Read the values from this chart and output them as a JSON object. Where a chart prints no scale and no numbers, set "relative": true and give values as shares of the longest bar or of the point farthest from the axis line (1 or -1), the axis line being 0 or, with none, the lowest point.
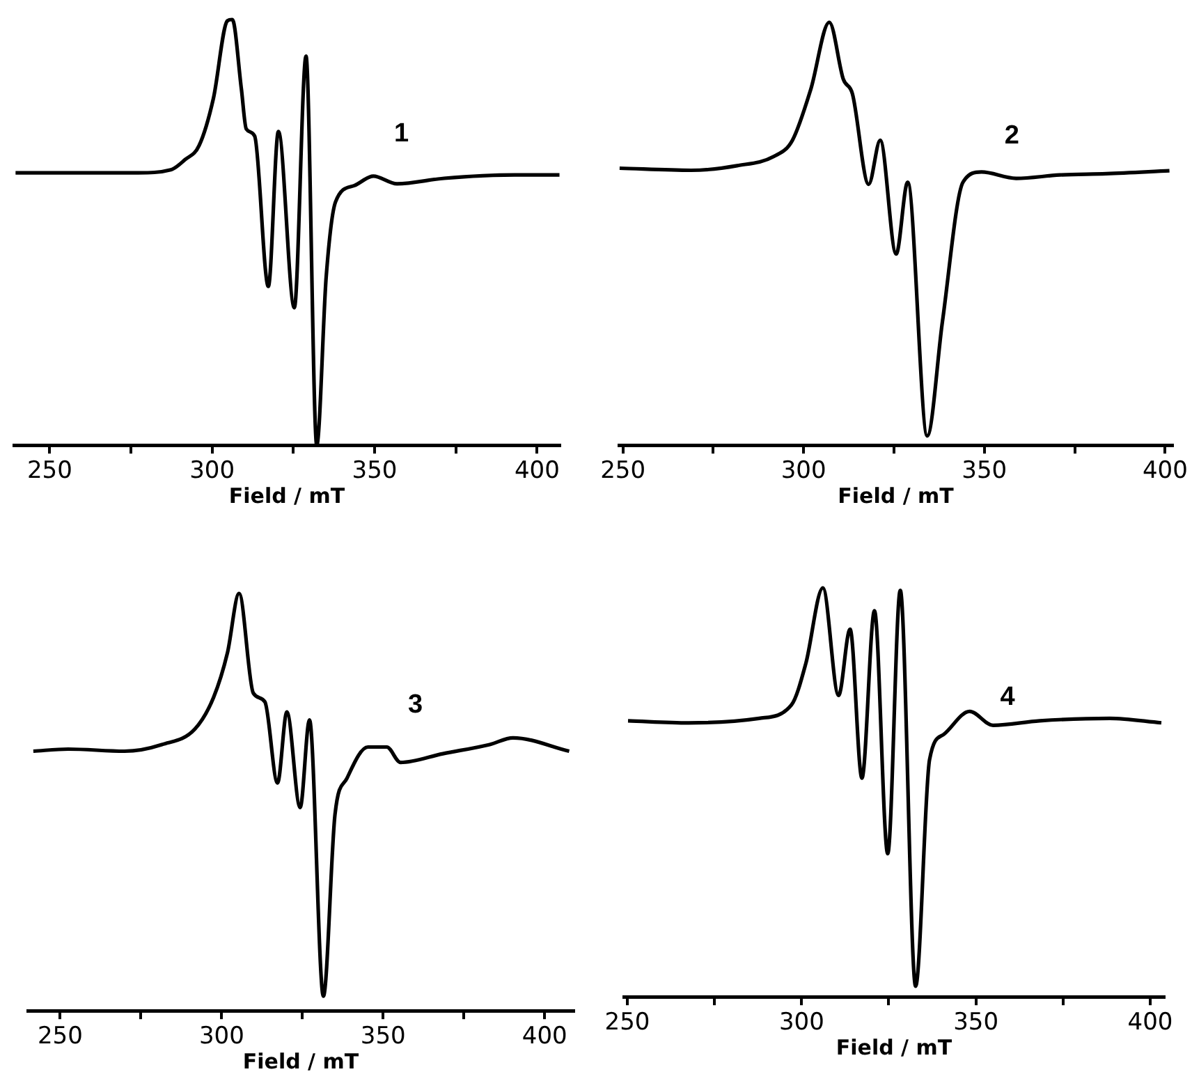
{
  "chart_data": [
    {
      "type": "line",
      "relative": true,
      "xlabel": "Field / mT",
      "xlim": [
        239,
        407
      ],
      "xticks": [
        250,
        {
          "value": 275,
          "label": null
        },
        300,
        {
          "value": 325,
          "label": null
        },
        350,
        {
          "value": 375,
          "label": null
        },
        400
      ],
      "tick_labels": "x",
      "annotations": [
        "1"
      ],
      "x": [
        239.5,
        262.7,
        277.2,
        287.3,
        291.7,
        296,
        300.4,
        304.7,
        306.2,
        309,
        310.5,
        313.1,
        317.3,
        320.4,
        325.3,
        328.9,
        332.2,
        335.1,
        338,
        343.8,
        349.6,
        356.9,
        371.4,
        393.1,
        406.9
      ],
      "series": [
        {
          "color": "#000000",
          "values": [
            0.64,
            0.64,
            0.64,
            0.647,
            0.671,
            0.704,
            0.815,
            0.997,
            1,
            0.837,
            0.743,
            0.726,
            0.373,
            0.737,
            0.323,
            0.914,
            0,
            0.395,
            0.572,
            0.61,
            0.632,
            0.614,
            0.627,
            0.635,
            0.635
          ]
        }
      ]
    },
    {
      "type": "line",
      "relative": true,
      "xlabel": "Field / mT",
      "xlim": [
        249,
        402
      ],
      "xticks": [
        250,
        {
          "value": 275,
          "label": null
        },
        300,
        {
          "value": 325,
          "label": null
        },
        350,
        {
          "value": 375,
          "label": null
        },
        400
      ],
      "tick_labels": "x",
      "annotations": [
        "2"
      ],
      "x": [
        249.1,
        268.9,
        281.6,
        291.8,
        296.9,
        302,
        307.1,
        311,
        313.5,
        318,
        321.2,
        325.6,
        328.8,
        334.2,
        338.4,
        344.1,
        349.2,
        358.8,
        370.9,
        383.7,
        401.2
      ],
      "series": [
        {
          "color": "#000000",
          "values": [
            0.655,
            0.65,
            0.661,
            0.683,
            0.721,
            0.842,
            1,
            0.865,
            0.831,
            0.617,
            0.721,
            0.452,
            0.622,
            0.022,
            0.292,
            0.622,
            0.646,
            0.631,
            0.639,
            0.642,
            0.649
          ]
        }
      ]
    },
    {
      "type": "line",
      "relative": true,
      "xlabel": "Field / mT",
      "xlim": [
        240,
        409
      ],
      "xticks": [
        250,
        {
          "value": 275,
          "label": null
        },
        300,
        {
          "value": 325,
          "label": null
        },
        350,
        {
          "value": 375,
          "label": null
        },
        400
      ],
      "tick_labels": "x",
      "annotations": [
        "3"
      ],
      "x": [
        241.7,
        252.5,
        269.9,
        281.5,
        291.7,
        297.5,
        301.8,
        305.4,
        309.8,
        313.4,
        317.3,
        320.2,
        324.3,
        327.2,
        331.5,
        335.1,
        338.8,
        345.3,
        351.1,
        355.4,
        368.5,
        383,
        390.2,
        407.6
      ],
      "series": [
        {
          "color": "#000000",
          "values": [
            0.622,
            0.627,
            0.622,
            0.638,
            0.675,
            0.751,
            0.858,
            1,
            0.761,
            0.74,
            0.546,
            0.716,
            0.487,
            0.697,
            0.035,
            0.471,
            0.557,
            0.632,
            0.632,
            0.595,
            0.616,
            0.638,
            0.654,
            0.622
          ]
        }
      ]
    },
    {
      "type": "line",
      "relative": true,
      "xlabel": "Field / mT",
      "xlim": [
        249,
        404
      ],
      "xticks": [
        250,
        {
          "value": 275,
          "label": null
        },
        300,
        {
          "value": 325,
          "label": null
        },
        350,
        {
          "value": 375,
          "label": null
        },
        400
      ],
      "tick_labels": "x",
      "annotations": [
        "4"
      ],
      "x": [
        250.2,
        267.6,
        287.8,
        297.1,
        301.2,
        306.1,
        310.6,
        313.9,
        317.3,
        320.9,
        324.7,
        328.3,
        332.7,
        336.7,
        340.8,
        348.2,
        354.9,
        368.3,
        388.4,
        403.2
      ],
      "series": [
        {
          "color": "#000000",
          "values": [
            0.675,
            0.67,
            0.681,
            0.714,
            0.815,
            1,
            0.737,
            0.899,
            0.535,
            0.944,
            0.35,
            0.994,
            0.026,
            0.58,
            0.642,
            0.698,
            0.664,
            0.675,
            0.681,
            0.67
          ]
        }
      ]
    }
  ]
}
